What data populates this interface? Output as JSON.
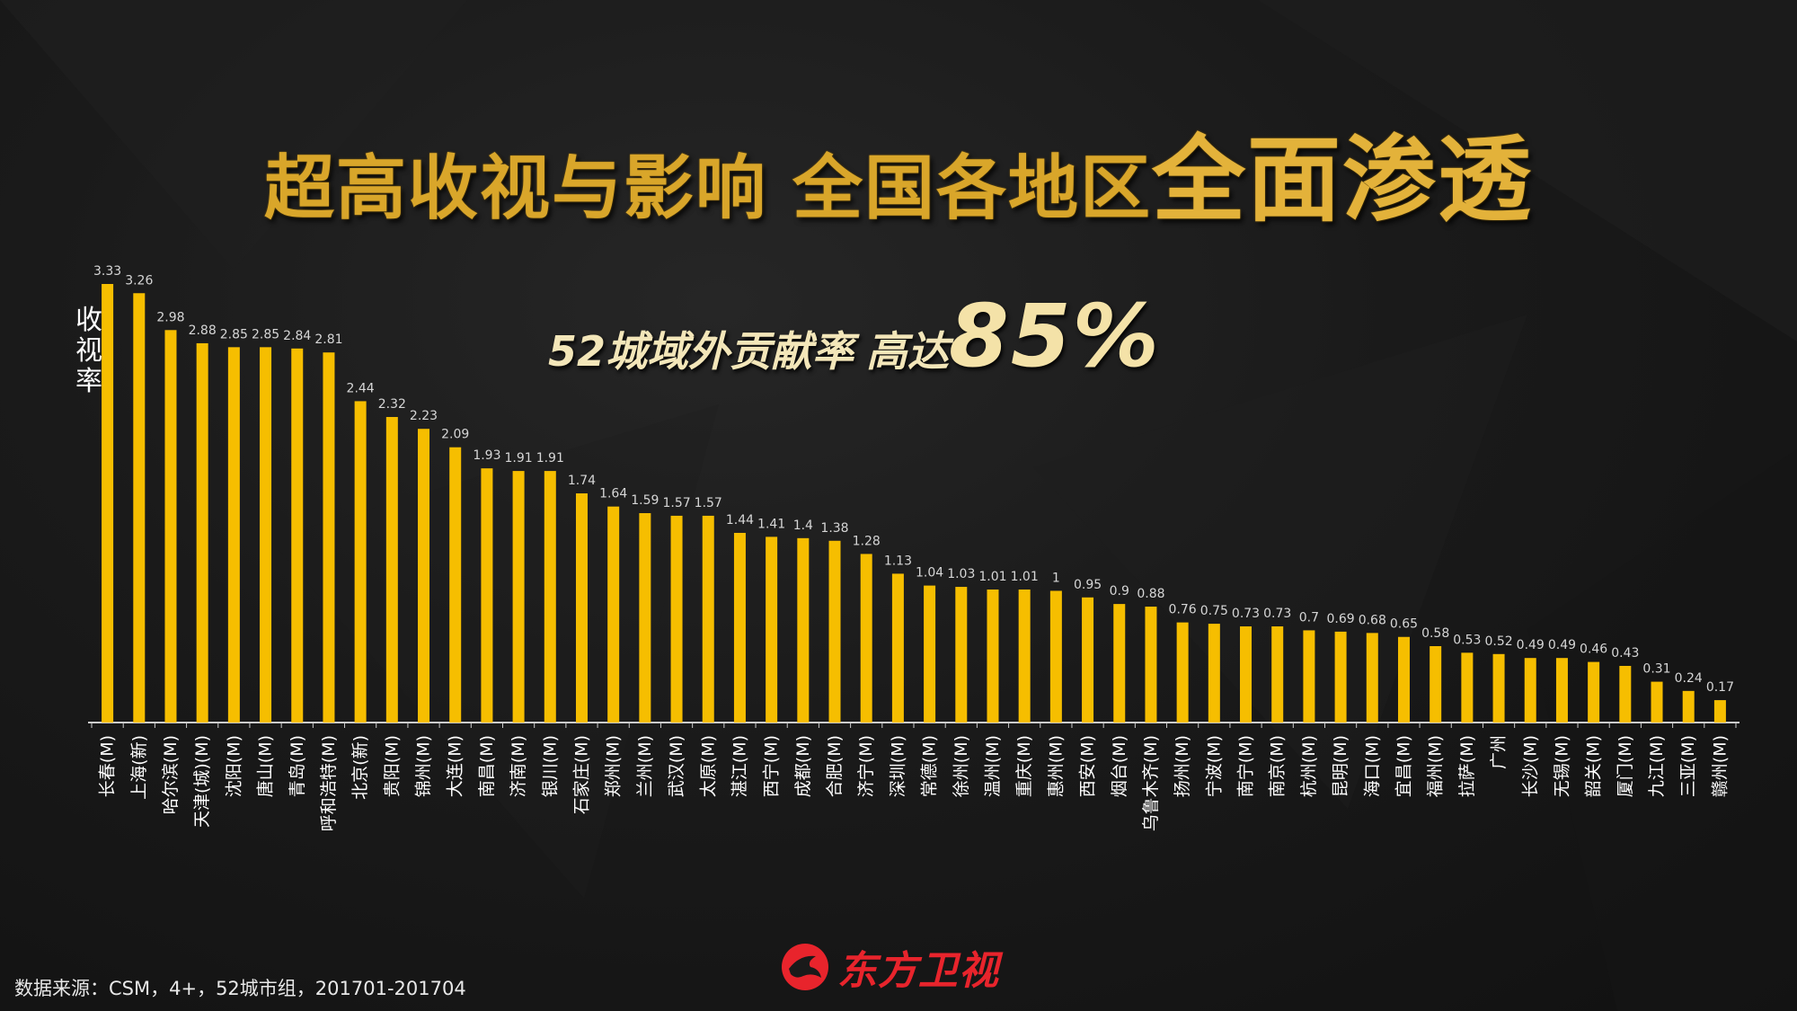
{
  "title": {
    "part1": "超高收视与影响",
    "part2": "全国各地区",
    "part3": "全面渗透"
  },
  "subtitle": {
    "part1": "52城域外贡献率",
    "part2": "高达",
    "part3": "85%"
  },
  "footer": {
    "source": "数据来源：CSM，4+，52城市组，201701-201704",
    "logo_text": "东方卫视",
    "logo_icon": "dragon-logo-icon"
  },
  "colors": {
    "bar": "#f6be00",
    "title": "#d9a62a",
    "subtitle": "#f3e6b9",
    "logo": "#e8242c",
    "axis": "#cccccc",
    "label": "#d6d6d6"
  },
  "chart_data": {
    "type": "bar",
    "ylabel": "收视率",
    "xlabel": "",
    "ylim": [
      0,
      3.33
    ],
    "grid": false,
    "legend": "none",
    "categories": [
      "长春(M)",
      "上海(新)",
      "哈尔滨(M)",
      "天津(城)(M)",
      "沈阳(M)",
      "唐山(M)",
      "青岛(M)",
      "呼和浩特(M)",
      "北京(新)",
      "贵阳(M)",
      "锦州(M)",
      "大连(M)",
      "南昌(M)",
      "济南(M)",
      "银川(M)",
      "石家庄(M)",
      "郑州(M)",
      "兰州(M)",
      "武汉(M)",
      "太原(M)",
      "湛江(M)",
      "西宁(M)",
      "成都(M)",
      "合肥(M)",
      "济宁(M)",
      "深圳(M)",
      "常德(M)",
      "徐州(M)",
      "温州(M)",
      "重庆(M)",
      "惠州(M)",
      "西安(M)",
      "烟台(M)",
      "乌鲁木齐(M)",
      "扬州(M)",
      "宁波(M)",
      "南宁(M)",
      "南京(M)",
      "杭州(M)",
      "昆明(M)",
      "海口(M)",
      "宜昌(M)",
      "福州(M)",
      "拉萨(M)",
      "广州",
      "长沙(M)",
      "无锡(M)",
      "韶关(M)",
      "厦门(M)",
      "九江(M)",
      "三亚(M)",
      "赣州(M)"
    ],
    "values": [
      3.33,
      3.26,
      2.98,
      2.88,
      2.85,
      2.85,
      2.84,
      2.81,
      2.44,
      2.32,
      2.23,
      2.09,
      1.93,
      1.91,
      1.91,
      1.74,
      1.64,
      1.59,
      1.57,
      1.57,
      1.44,
      1.41,
      1.4,
      1.38,
      1.28,
      1.13,
      1.04,
      1.03,
      1.01,
      1.01,
      1,
      0.95,
      0.9,
      0.88,
      0.76,
      0.75,
      0.73,
      0.73,
      0.7,
      0.69,
      0.68,
      0.65,
      0.58,
      0.53,
      0.52,
      0.49,
      0.49,
      0.46,
      0.43,
      0.31,
      0.24,
      0.17
    ]
  }
}
